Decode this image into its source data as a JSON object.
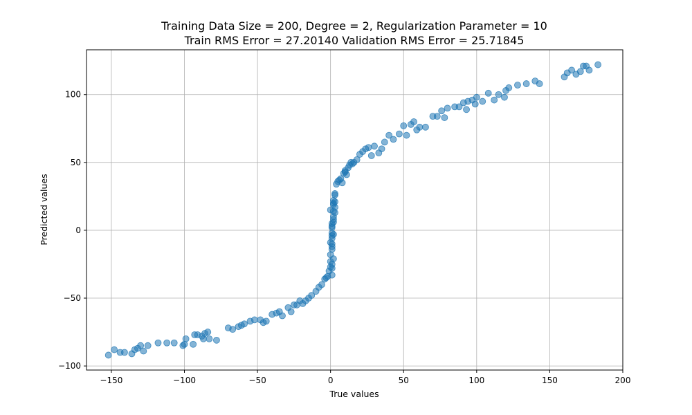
{
  "chart_data": {
    "type": "scatter",
    "title": "Training Data Size = 200, Degree = 2, Regularization Parameter = 10",
    "subtitle": "Train RMS Error = 27.20140 Validation RMS Error = 25.71845",
    "xlabel": "True values",
    "ylabel": "Predicted values",
    "xlim": [
      -167,
      200
    ],
    "ylim": [
      -103,
      133
    ],
    "x_ticks": [
      -150,
      -100,
      -50,
      0,
      50,
      100,
      150,
      200
    ],
    "y_ticks": [
      -100,
      -50,
      0,
      50,
      100
    ],
    "x_tick_labels": [
      "−150",
      "−100",
      "−50",
      "0",
      "50",
      "100",
      "150",
      "200"
    ],
    "y_tick_labels": [
      "−100",
      "−50",
      "0",
      "50",
      "100"
    ],
    "grid": true,
    "marker_color": "#1f77b4",
    "marker_opacity": 0.55,
    "x": [
      -152,
      -148,
      -144,
      -141,
      -136,
      -134,
      -132,
      -130,
      -128,
      -125,
      -118,
      -112,
      -107,
      -101,
      -99,
      -100,
      -94,
      -93,
      -91,
      -88,
      -87,
      -86,
      -84,
      -83,
      -78,
      -70,
      -67,
      -63,
      -61,
      -59,
      -55,
      -52,
      -48,
      -46,
      -44,
      -40,
      -37,
      -35,
      -33,
      -29,
      -27,
      -25,
      -23,
      -21,
      -19,
      -17,
      -15,
      -13,
      -10,
      -8,
      -6,
      -4,
      -3,
      -2,
      -1,
      0,
      0,
      0,
      1,
      1,
      1,
      1,
      1,
      2,
      2,
      2,
      2,
      2,
      3,
      3,
      3,
      3,
      3,
      2,
      1,
      1,
      2,
      1,
      1,
      1,
      2,
      1,
      0,
      1,
      0,
      2,
      4,
      5,
      6,
      7,
      8,
      9,
      10,
      10,
      11,
      12,
      13,
      14,
      15,
      16,
      18,
      20,
      22,
      24,
      26,
      28,
      30,
      33,
      35,
      37,
      40,
      43,
      47,
      50,
      52,
      55,
      57,
      59,
      61,
      65,
      70,
      73,
      76,
      78,
      80,
      85,
      88,
      91,
      93,
      94,
      97,
      99,
      100,
      104,
      108,
      112,
      115,
      119,
      120,
      122,
      128,
      134,
      140,
      143,
      160,
      162,
      165,
      168,
      171,
      173,
      175,
      177,
      183
    ],
    "y": [
      -92,
      -88,
      -90,
      -90,
      -91,
      -88,
      -87,
      -85,
      -89,
      -85,
      -83,
      -83,
      -83,
      -85,
      -80,
      -84,
      -84,
      -77,
      -77,
      -78,
      -80,
      -76,
      -75,
      -80,
      -81,
      -72,
      -73,
      -71,
      -70,
      -69,
      -67,
      -66,
      -66,
      -68,
      -67,
      -62,
      -61,
      -60,
      -63,
      -57,
      -60,
      -55,
      -55,
      -52,
      -54,
      -52,
      -50,
      -48,
      -45,
      -42,
      -40,
      -36,
      -35,
      -34,
      -30,
      -27,
      -23,
      -18,
      -14,
      -10,
      -6,
      -2,
      3,
      8,
      10,
      14,
      19,
      22,
      27,
      26,
      21,
      17,
      13,
      6,
      -4,
      -12,
      -21,
      -25,
      -28,
      -33,
      -3,
      2,
      -9,
      5,
      15,
      20,
      34,
      36,
      37,
      38,
      35,
      42,
      43,
      44,
      41,
      46,
      48,
      50,
      49,
      50,
      52,
      56,
      58,
      60,
      61,
      55,
      62,
      57,
      60,
      65,
      70,
      67,
      71,
      77,
      70,
      78,
      80,
      74,
      76,
      76,
      84,
      84,
      88,
      83,
      90,
      91,
      91,
      94,
      89,
      95,
      96,
      93,
      98,
      95,
      101,
      96,
      100,
      98,
      103,
      105,
      107,
      108,
      110,
      108,
      113,
      116,
      118,
      115,
      117,
      121,
      121,
      118,
      122
    ]
  }
}
